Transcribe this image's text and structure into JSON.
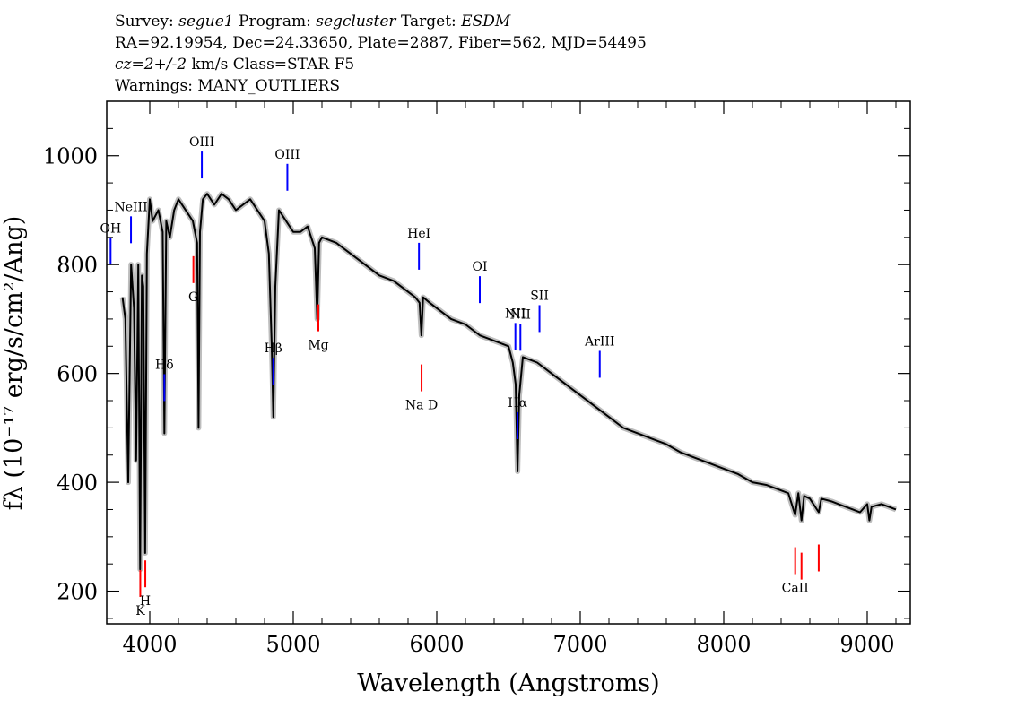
{
  "header": {
    "survey_label": "Survey:",
    "survey": "segue1",
    "program_label": "Program:",
    "program": "segcluster",
    "target_label": "Target:",
    "target": "ESDM",
    "line2": "RA=92.19954, Dec=24.33650, Plate=2887, Fiber=562, MJD=54495",
    "cz": "cz=2+/-2",
    "cz_unit_class": "km/s Class=STAR F5",
    "warnings": "Warnings: MANY_OUTLIERS"
  },
  "chart_data": {
    "type": "line",
    "xlabel": "Wavelength (Angstroms)",
    "ylabel": "fλ (10⁻¹⁷ erg/s/cm²/Ang)",
    "xlim": [
      3700,
      9300
    ],
    "ylim": [
      140,
      1100
    ],
    "x_ticks": [
      4000,
      5000,
      6000,
      7000,
      8000,
      9000
    ],
    "y_ticks": [
      200,
      400,
      600,
      800,
      1000
    ],
    "grid": false,
    "colors": {
      "flux": "#000000",
      "error_band": "#bdbdbd",
      "emission_marker": "#0000ff",
      "absorption_marker": "#ff0000"
    },
    "series": [
      {
        "x": [
          3810,
          3830,
          3850,
          3870,
          3890,
          3905,
          3920,
          3933,
          3945,
          3955,
          3968,
          3980,
          4000,
          4020,
          4060,
          4090,
          4102,
          4115,
          4140,
          4170,
          4200,
          4250,
          4300,
          4330,
          4340,
          4350,
          4370,
          4400,
          4450,
          4500,
          4550,
          4600,
          4650,
          4700,
          4750,
          4800,
          4830,
          4850,
          4861,
          4875,
          4900,
          4950,
          5000,
          5050,
          5100,
          5150,
          5167,
          5180,
          5200,
          5300,
          5400,
          5500,
          5600,
          5700,
          5800,
          5850,
          5880,
          5893,
          5905,
          5950,
          6000,
          6100,
          6200,
          6300,
          6400,
          6500,
          6530,
          6550,
          6563,
          6575,
          6600,
          6700,
          6800,
          6900,
          7000,
          7100,
          7200,
          7300,
          7400,
          7500,
          7600,
          7700,
          7800,
          7900,
          8000,
          8100,
          8200,
          8300,
          8400,
          8450,
          8498,
          8520,
          8542,
          8560,
          8600,
          8662,
          8680,
          8750,
          8800,
          8850,
          8900,
          8950,
          9000,
          9015,
          9030,
          9100,
          9150,
          9200
        ],
        "y": [
          740,
          700,
          400,
          800,
          720,
          440,
          800,
          240,
          780,
          760,
          270,
          820,
          920,
          880,
          900,
          860,
          490,
          880,
          850,
          900,
          920,
          900,
          880,
          840,
          500,
          860,
          920,
          930,
          910,
          930,
          920,
          900,
          910,
          920,
          900,
          880,
          820,
          650,
          520,
          760,
          900,
          880,
          860,
          860,
          870,
          830,
          700,
          840,
          850,
          840,
          820,
          800,
          780,
          770,
          750,
          740,
          730,
          670,
          740,
          730,
          720,
          700,
          690,
          670,
          660,
          650,
          620,
          580,
          420,
          560,
          630,
          620,
          600,
          580,
          560,
          540,
          520,
          500,
          490,
          480,
          470,
          455,
          445,
          435,
          425,
          415,
          400,
          395,
          385,
          380,
          340,
          380,
          330,
          375,
          370,
          345,
          370,
          365,
          360,
          355,
          350,
          345,
          360,
          330,
          355,
          360,
          355,
          350
        ]
      }
    ],
    "line_markers": [
      {
        "label": "OH",
        "wavelength": 3727,
        "kind": "emission"
      },
      {
        "label": "NeIII",
        "wavelength": 3869,
        "kind": "emission"
      },
      {
        "label": "Hδ",
        "wavelength": 4102,
        "kind": "emission"
      },
      {
        "label": "OIII",
        "wavelength": 4363,
        "kind": "emission"
      },
      {
        "label": "Hβ",
        "wavelength": 4861,
        "kind": "emission"
      },
      {
        "label": "OIII",
        "wavelength": 4959,
        "kind": "emission"
      },
      {
        "label": "HeI",
        "wavelength": 5876,
        "kind": "emission"
      },
      {
        "label": "OI",
        "wavelength": 6300,
        "kind": "emission"
      },
      {
        "label": "NII",
        "wavelength": 6548,
        "kind": "emission"
      },
      {
        "label": "Hα",
        "wavelength": 6563,
        "kind": "emission"
      },
      {
        "label": "NII",
        "wavelength": 6583,
        "kind": "emission"
      },
      {
        "label": "SII",
        "wavelength": 6716,
        "kind": "emission"
      },
      {
        "label": "ArIII",
        "wavelength": 7136,
        "kind": "emission"
      },
      {
        "label": "K",
        "wavelength": 3934,
        "kind": "absorption"
      },
      {
        "label": "H",
        "wavelength": 3969,
        "kind": "absorption"
      },
      {
        "label": "G",
        "wavelength": 4304,
        "kind": "absorption"
      },
      {
        "label": "Mg",
        "wavelength": 5175,
        "kind": "absorption"
      },
      {
        "label": "Na D",
        "wavelength": 5894,
        "kind": "absorption"
      },
      {
        "label": "CaII",
        "wavelength": 8498,
        "kind": "absorption"
      },
      {
        "label": "CaII",
        "wavelength": 8542,
        "kind": "absorption"
      },
      {
        "label": "CaII",
        "wavelength": 8662,
        "kind": "absorption"
      }
    ]
  }
}
